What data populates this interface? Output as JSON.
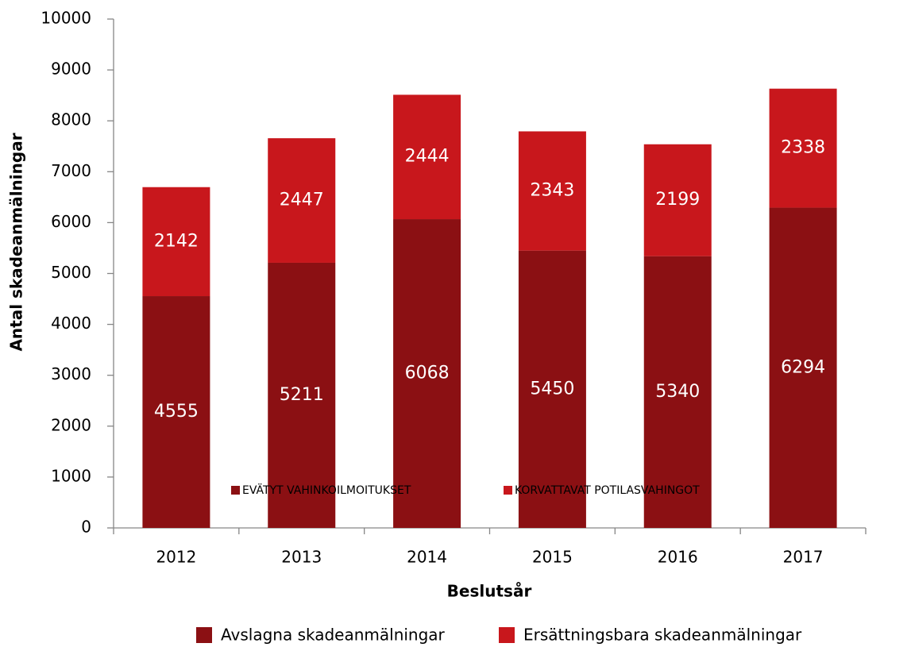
{
  "chart_data": {
    "type": "stacked_bar",
    "categories": [
      "2012",
      "2013",
      "2014",
      "2015",
      "2016",
      "2017"
    ],
    "series": [
      {
        "name": "Avslagna skadeanmälningar",
        "color": "#8b1013",
        "values": [
          4555,
          5211,
          6068,
          5450,
          5340,
          6294
        ]
      },
      {
        "name": "Ersättningsbara skadeanmälningar",
        "color": "#c8171c",
        "values": [
          2142,
          2447,
          2444,
          2343,
          2199,
          2338
        ]
      }
    ],
    "ylim": [
      0,
      10000
    ],
    "yticks": [
      0,
      1000,
      2000,
      3000,
      4000,
      5000,
      6000,
      7000,
      8000,
      9000,
      10000
    ],
    "y_label": "Antal skadeanmälningar",
    "x_label": "Beslutsår",
    "overlay_legend": [
      "EVÄTYT VAHINKOILMOITUKSET",
      "KORVATTAVAT POTILASVAHINGOT"
    ],
    "grid": false
  }
}
